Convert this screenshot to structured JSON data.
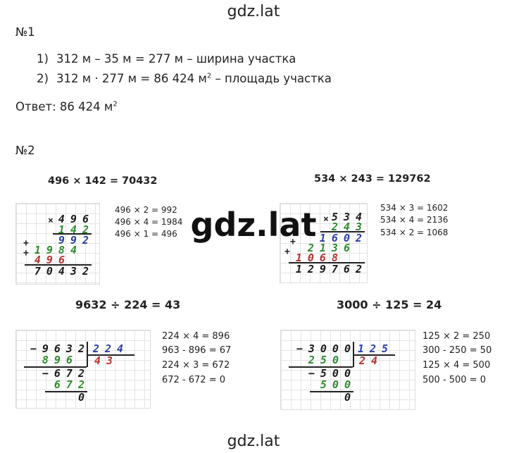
{
  "header": "gdz.lat",
  "task1": {
    "label": "№1",
    "lines": [
      {
        "num": "1)",
        "text": "312 м – 35 м = 277 м – ширина участка"
      },
      {
        "num": "2)",
        "text": "312 м · 277 м = 86 424 м",
        "sup": "2",
        "after": " – площадь участка"
      }
    ],
    "answer": {
      "text": "Ответ: 86 424 м",
      "sup": "2"
    }
  },
  "task2": {
    "label": "№2",
    "multiplications": [
      {
        "title": "496 × 142 = 70432",
        "signs": [
          "×",
          "+",
          "+"
        ],
        "rows": [
          "496",
          "142",
          "992",
          "1984",
          "496",
          "70432"
        ],
        "notes": [
          "496 × 2 = 992",
          "496 × 4 = 1984",
          "496 × 1 = 496"
        ]
      },
      {
        "title": "534 × 243 = 129762",
        "signs": [
          "×",
          "+",
          "+"
        ],
        "rows": [
          "534",
          "243",
          "1602",
          "2136",
          "1068",
          "129762"
        ],
        "notes": [
          "534 × 3 = 1602",
          "534 × 4 = 2136",
          "534 × 2 = 1068"
        ]
      }
    ],
    "divisions": [
      {
        "title": "9632 ÷ 224 = 43",
        "dividend": "−9632",
        "divisor": "224",
        "quotient": "43",
        "rows": [
          "896",
          "−672",
          "672",
          "0"
        ],
        "notes": [
          "224 × 4 = 896",
          "963 - 896 = 67",
          "224 × 3 = 672",
          "672 - 672 = 0"
        ]
      },
      {
        "title": "3000 ÷ 125 = 24",
        "dividend": "−3000",
        "divisor": "125",
        "quotient": "24",
        "rows": [
          "250",
          "−500",
          "500",
          "0"
        ],
        "notes": [
          "125 × 2 = 250",
          "300 - 250 = 50",
          "125 × 4 = 500",
          "500 - 500 = 0"
        ]
      }
    ]
  },
  "watermark": "gdz.lat",
  "footer": "gdz.lat"
}
